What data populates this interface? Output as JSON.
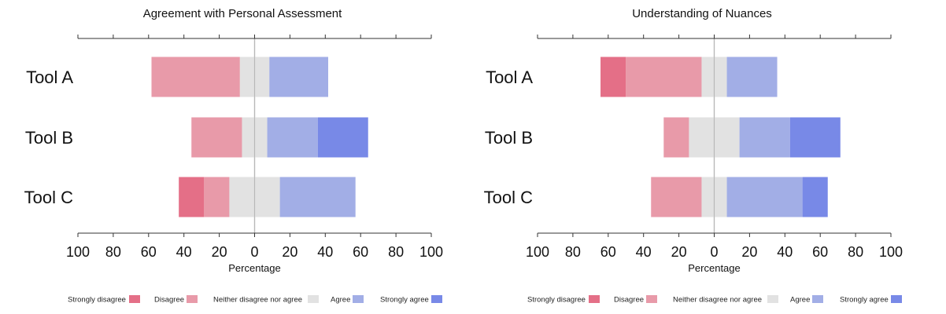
{
  "colors": {
    "strongly_disagree": "#e46f87",
    "disagree": "#e89aa9",
    "neutral": "#e2e2e2",
    "agree": "#a2aee6",
    "strongly_agree": "#7889e7"
  },
  "chart_data": [
    {
      "type": "bar",
      "orientation": "horizontal-diverging-stacked",
      "title": "Agreement with Personal Assessment",
      "xlabel": "Percentage",
      "xlim": [
        -100,
        100
      ],
      "xticks": [
        -100,
        -80,
        -60,
        -40,
        -20,
        0,
        20,
        40,
        60,
        80,
        100
      ],
      "xtick_labels": [
        "100",
        "80",
        "60",
        "40",
        "20",
        "0",
        "20",
        "40",
        "60",
        "80",
        "100"
      ],
      "categories": [
        "Tool A",
        "Tool B",
        "Tool C"
      ],
      "series": [
        {
          "name": "Strongly disagree",
          "color_key": "strongly_disagree",
          "values": [
            0,
            0,
            14.3
          ]
        },
        {
          "name": "Disagree",
          "color_key": "disagree",
          "values": [
            50,
            28.6,
            14.3
          ]
        },
        {
          "name": "Neither disagree nor agree",
          "color_key": "neutral",
          "values": [
            16.7,
            14.3,
            28.6
          ]
        },
        {
          "name": "Agree",
          "color_key": "agree",
          "values": [
            33.3,
            28.6,
            42.8
          ]
        },
        {
          "name": "Strongly agree",
          "color_key": "strongly_agree",
          "values": [
            0,
            28.5,
            0
          ]
        }
      ],
      "legend_position": "bottom"
    },
    {
      "type": "bar",
      "orientation": "horizontal-diverging-stacked",
      "title": "Understanding of Nuances",
      "xlabel": "Percentage",
      "xlim": [
        -100,
        100
      ],
      "xticks": [
        -100,
        -80,
        -60,
        -40,
        -20,
        0,
        20,
        40,
        60,
        80,
        100
      ],
      "xtick_labels": [
        "100",
        "80",
        "60",
        "40",
        "20",
        "0",
        "20",
        "40",
        "60",
        "80",
        "100"
      ],
      "categories": [
        "Tool A",
        "Tool B",
        "Tool C"
      ],
      "series": [
        {
          "name": "Strongly disagree",
          "color_key": "strongly_disagree",
          "values": [
            14.3,
            0,
            0
          ]
        },
        {
          "name": "Disagree",
          "color_key": "disagree",
          "values": [
            42.9,
            14.3,
            28.6
          ]
        },
        {
          "name": "Neither disagree nor agree",
          "color_key": "neutral",
          "values": [
            14.3,
            28.6,
            14.3
          ]
        },
        {
          "name": "Agree",
          "color_key": "agree",
          "values": [
            28.5,
            28.6,
            42.8
          ]
        },
        {
          "name": "Strongly agree",
          "color_key": "strongly_agree",
          "values": [
            0,
            28.5,
            14.3
          ]
        }
      ],
      "legend_position": "bottom"
    }
  ]
}
